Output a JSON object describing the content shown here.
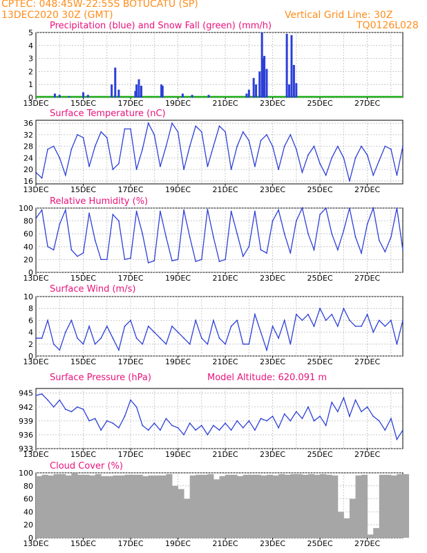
{
  "header": {
    "line1": "CPTEC:   048:45W-22:55S   BOTUCATU (SP)",
    "line2_left": "13DEC2020 30Z (GMT)",
    "line2_right": "Vertical Grid Line: 30Z",
    "line3_right": "TQ0126L028"
  },
  "colors": {
    "series": "#2c3fd6",
    "snow": "#21b11d",
    "cloud": "#a6a6a6",
    "title": "#e8127b",
    "header": "#ff8c1a"
  },
  "x_tick_labels": [
    "13DEC",
    "15DEC",
    "17DEC",
    "19DEC",
    "21DEC",
    "23DEC",
    "25DEC",
    "27DEC"
  ],
  "chart_data": [
    {
      "type": "bar",
      "title": "Precipitation (blue) and Snow Fall (green) (mm/h)",
      "ylim": [
        0,
        5
      ],
      "yticks": [
        0,
        1,
        2,
        3,
        4,
        5
      ],
      "series": [
        {
          "name": "Precipitation",
          "points": [
            [
              0.8,
              0.3
            ],
            [
              1.0,
              0.2
            ],
            [
              1.4,
              0.1
            ],
            [
              2.0,
              0.4
            ],
            [
              2.2,
              0.2
            ],
            [
              3.2,
              1.0
            ],
            [
              3.35,
              2.3
            ],
            [
              3.5,
              0.6
            ],
            [
              4.2,
              0.5
            ],
            [
              4.25,
              1.0
            ],
            [
              4.35,
              1.4
            ],
            [
              4.45,
              0.9
            ],
            [
              5.3,
              1.0
            ],
            [
              5.35,
              0.9
            ],
            [
              6.2,
              0.3
            ],
            [
              6.6,
              0.2
            ],
            [
              7.3,
              0.2
            ],
            [
              8.9,
              0.3
            ],
            [
              9.0,
              0.6
            ],
            [
              9.2,
              1.5
            ],
            [
              9.3,
              1.0
            ],
            [
              9.45,
              2.0
            ],
            [
              9.55,
              5.0
            ],
            [
              9.6,
              3.0
            ],
            [
              9.65,
              3.2
            ],
            [
              9.75,
              2.2
            ],
            [
              10.6,
              4.9
            ],
            [
              10.7,
              1.0
            ],
            [
              10.8,
              4.8
            ],
            [
              10.9,
              2.5
            ],
            [
              11.0,
              1.1
            ]
          ]
        },
        {
          "name": "Snow Fall",
          "points": []
        }
      ],
      "ylabel": ""
    },
    {
      "type": "line",
      "title": "Surface Temperature (nC)",
      "ylim": [
        15,
        37
      ],
      "yticks": [
        16,
        20,
        24,
        28,
        32,
        36
      ],
      "x": [
        0.0,
        0.25,
        0.5,
        0.75,
        1.0,
        1.25,
        1.5,
        1.75,
        2.0,
        2.25,
        2.5,
        2.75,
        3.0,
        3.25,
        3.5,
        3.75,
        4.0,
        4.25,
        4.5,
        4.75,
        5.0,
        5.25,
        5.5,
        5.75,
        6.0,
        6.25,
        6.5,
        6.75,
        7.0,
        7.25,
        7.5,
        7.75,
        8.0,
        8.25,
        8.5,
        8.75,
        9.0,
        9.25,
        9.5,
        9.75,
        10.0,
        10.25,
        10.5,
        10.75,
        11.0,
        11.25,
        11.5,
        11.75,
        12.0,
        12.25,
        12.5,
        12.75,
        13.0,
        13.25,
        13.5,
        13.75,
        14.0,
        14.25,
        14.5,
        14.75,
        15.0,
        15.25,
        15.5
      ],
      "values": [
        19,
        17,
        27,
        28,
        24,
        18,
        27,
        32,
        31,
        21,
        28,
        33,
        31,
        20,
        22,
        34,
        34,
        20,
        27,
        36,
        32,
        21,
        28,
        36,
        33,
        20,
        28,
        35,
        33,
        21,
        28,
        35,
        33,
        20,
        28,
        33,
        30,
        21,
        30,
        32,
        28,
        20,
        28,
        32,
        27,
        19,
        25,
        28,
        22,
        18,
        24,
        28,
        24,
        16,
        24,
        28,
        25,
        18,
        23,
        28,
        27,
        18,
        28
      ]
    },
    {
      "type": "line",
      "title": "Relative Humidity (%)",
      "ylim": [
        0,
        100
      ],
      "yticks": [
        0,
        20,
        40,
        60,
        80,
        100
      ],
      "x": [
        0.0,
        0.25,
        0.5,
        0.75,
        1.0,
        1.25,
        1.5,
        1.75,
        2.0,
        2.25,
        2.5,
        2.75,
        3.0,
        3.25,
        3.5,
        3.75,
        4.0,
        4.25,
        4.5,
        4.75,
        5.0,
        5.25,
        5.5,
        5.75,
        6.0,
        6.25,
        6.5,
        6.75,
        7.0,
        7.25,
        7.5,
        7.75,
        8.0,
        8.25,
        8.5,
        8.75,
        9.0,
        9.25,
        9.5,
        9.75,
        10.0,
        10.25,
        10.5,
        10.75,
        11.0,
        11.25,
        11.5,
        11.75,
        12.0,
        12.25,
        12.5,
        12.75,
        13.0,
        13.25,
        13.5,
        13.75,
        14.0,
        14.25,
        14.5,
        14.75,
        15.0,
        15.25,
        15.5
      ],
      "values": [
        84,
        97,
        40,
        35,
        75,
        97,
        35,
        25,
        30,
        92,
        50,
        20,
        20,
        90,
        80,
        20,
        22,
        95,
        60,
        15,
        18,
        95,
        55,
        18,
        20,
        97,
        55,
        17,
        20,
        98,
        55,
        17,
        20,
        95,
        60,
        25,
        40,
        95,
        35,
        30,
        80,
        97,
        60,
        30,
        80,
        100,
        60,
        35,
        90,
        100,
        60,
        35,
        65,
        100,
        55,
        30,
        75,
        100,
        50,
        32,
        55,
        100,
        35
      ]
    },
    {
      "type": "line",
      "title": "Surface Wind (m/s)",
      "ylim": [
        0,
        10
      ],
      "yticks": [
        0,
        2,
        4,
        6,
        8,
        10
      ],
      "x": [
        0.0,
        0.25,
        0.5,
        0.75,
        1.0,
        1.25,
        1.5,
        1.75,
        2.0,
        2.25,
        2.5,
        2.75,
        3.0,
        3.25,
        3.5,
        3.75,
        4.0,
        4.25,
        4.5,
        4.75,
        5.0,
        5.25,
        5.5,
        5.75,
        6.0,
        6.25,
        6.5,
        6.75,
        7.0,
        7.25,
        7.5,
        7.75,
        8.0,
        8.25,
        8.5,
        8.75,
        9.0,
        9.25,
        9.5,
        9.75,
        10.0,
        10.25,
        10.5,
        10.75,
        11.0,
        11.25,
        11.5,
        11.75,
        12.0,
        12.25,
        12.5,
        12.75,
        13.0,
        13.25,
        13.5,
        13.75,
        14.0,
        14.25,
        14.5,
        14.75,
        15.0,
        15.25,
        15.5
      ],
      "values": [
        3,
        3,
        6,
        2,
        1,
        4,
        6,
        3,
        2,
        5,
        2,
        3,
        5,
        3,
        1,
        5,
        6,
        3,
        2,
        5,
        4,
        3,
        2,
        5,
        4,
        3,
        2,
        6,
        3,
        2,
        6,
        3,
        2,
        5,
        6,
        2,
        2,
        7,
        4,
        1,
        5,
        3,
        6,
        2,
        7,
        6,
        7,
        5,
        8,
        6,
        7,
        5,
        8,
        6,
        5,
        5,
        7,
        4,
        6,
        5,
        6,
        2,
        6
      ]
    },
    {
      "type": "line",
      "title": "Surface Pressure (hPa)",
      "annotation": "Model Altitude: 620.091 m",
      "ylim": [
        933,
        946
      ],
      "yticks": [
        933,
        936,
        939,
        942,
        945
      ],
      "x": [
        0.0,
        0.25,
        0.5,
        0.75,
        1.0,
        1.25,
        1.5,
        1.75,
        2.0,
        2.25,
        2.5,
        2.75,
        3.0,
        3.25,
        3.5,
        3.75,
        4.0,
        4.25,
        4.5,
        4.75,
        5.0,
        5.25,
        5.5,
        5.75,
        6.0,
        6.25,
        6.5,
        6.75,
        7.0,
        7.25,
        7.5,
        7.75,
        8.0,
        8.25,
        8.5,
        8.75,
        9.0,
        9.25,
        9.5,
        9.75,
        10.0,
        10.25,
        10.5,
        10.75,
        11.0,
        11.25,
        11.5,
        11.75,
        12.0,
        12.25,
        12.5,
        12.75,
        13.0,
        13.25,
        13.5,
        13.75,
        14.0,
        14.25,
        14.5,
        14.75,
        15.0,
        15.25,
        15.5
      ],
      "values": [
        944.5,
        944.8,
        943.5,
        942,
        943.5,
        941.5,
        941,
        942,
        941.5,
        939,
        939.5,
        937,
        939,
        938.5,
        937.5,
        940,
        943.5,
        942,
        938,
        937,
        938.5,
        937,
        939.5,
        938,
        937.5,
        936,
        938.5,
        937,
        938,
        936,
        938,
        937,
        938.5,
        937,
        939,
        937.5,
        939,
        937,
        939.5,
        939,
        940,
        937.5,
        940.5,
        939,
        941,
        939.5,
        942,
        939,
        940,
        938,
        943,
        941,
        944,
        940,
        943.5,
        941,
        942,
        940,
        939,
        937,
        939.5,
        935,
        937
      ]
    },
    {
      "type": "bar",
      "title": "Cloud Cover (%)",
      "ylim": [
        0,
        100
      ],
      "yticks": [
        0,
        20,
        40,
        60,
        80,
        100
      ],
      "x": [
        0.0,
        0.25,
        0.5,
        0.75,
        1.0,
        1.25,
        1.5,
        1.75,
        2.0,
        2.25,
        2.5,
        2.75,
        3.0,
        3.25,
        3.5,
        3.75,
        4.0,
        4.25,
        4.5,
        4.75,
        5.0,
        5.25,
        5.5,
        5.75,
        6.0,
        6.25,
        6.5,
        6.75,
        7.0,
        7.25,
        7.5,
        7.75,
        8.0,
        8.25,
        8.5,
        8.75,
        9.0,
        9.25,
        9.5,
        9.75,
        10.0,
        10.25,
        10.5,
        10.75,
        11.0,
        11.25,
        11.5,
        11.75,
        12.0,
        12.25,
        12.5,
        12.75,
        13.0,
        13.25,
        13.5,
        13.75,
        14.0,
        14.25,
        14.5,
        14.75,
        15.0,
        15.25,
        15.5
      ],
      "values": [
        95,
        97,
        96,
        98,
        98,
        96,
        100,
        97,
        97,
        96,
        98,
        95,
        95,
        96,
        96,
        97,
        97,
        97,
        95,
        96,
        96,
        96,
        98,
        80,
        75,
        60,
        96,
        97,
        97,
        98,
        90,
        95,
        97,
        97,
        95,
        97,
        97,
        97,
        96,
        97,
        96,
        98,
        97,
        98,
        98,
        97,
        98,
        97,
        98,
        97,
        96,
        40,
        30,
        60,
        96,
        97,
        5,
        15,
        97,
        97,
        96,
        98,
        98
      ]
    }
  ]
}
